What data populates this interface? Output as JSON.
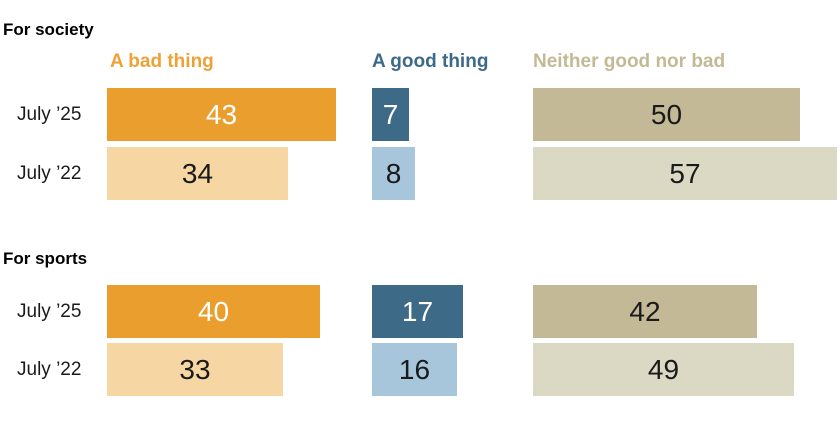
{
  "chart_data": {
    "type": "bar",
    "orientation": "horizontal",
    "title": "",
    "legend": [
      {
        "label": "A bad thing",
        "color": "#EEA236"
      },
      {
        "label": "A good thing",
        "color": "#3D6A87"
      },
      {
        "label": "Neither good nor bad",
        "color": "#C3B995"
      }
    ],
    "colors": {
      "bad_dark": "#EA9E2D",
      "bad_light": "#F6D6A3",
      "good_dark": "#3D6A87",
      "good_light": "#A7C6DC",
      "neither_dark": "#C3B997",
      "neither_light": "#DBD8C4"
    },
    "xlim": [
      0,
      60
    ],
    "grid": false,
    "legend_position": "top",
    "groups": [
      {
        "title": "For society",
        "rows": [
          {
            "label": "July ’25",
            "bad": 43,
            "good": 7,
            "neither": 50
          },
          {
            "label": "July ’22",
            "bad": 34,
            "good": 8,
            "neither": 57
          }
        ]
      },
      {
        "title": "For sports",
        "rows": [
          {
            "label": "July ’25",
            "bad": 40,
            "good": 17,
            "neither": 42
          },
          {
            "label": "July ’22",
            "bad": 33,
            "good": 16,
            "neither": 49
          }
        ]
      }
    ]
  }
}
